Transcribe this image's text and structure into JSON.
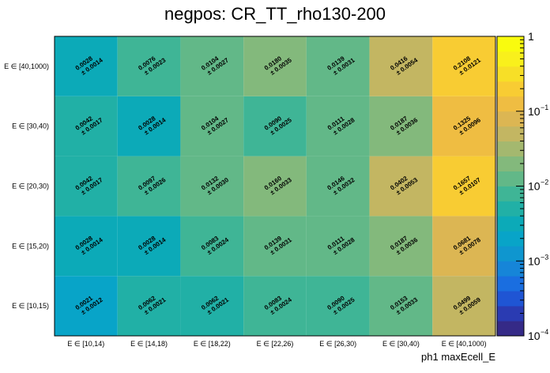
{
  "chart_data": {
    "type": "heatmap",
    "title": "negpos: CR_TT_rho130-200",
    "xlabel": "ph1 maxEcell_E",
    "ylabel": "",
    "x_categories": [
      "E ∈ [10,14)",
      "E ∈ [14,18)",
      "E ∈ [18,22)",
      "E ∈ [22,26)",
      "E ∈ [26,30)",
      "E ∈ [30,40)",
      "E ∈ [40,1000)"
    ],
    "y_categories": [
      "E ∈ [10,15)",
      "E ∈ [15,20)",
      "E ∈ [20,30)",
      "E ∈ [30,40)",
      "E ∈ [40,1000)"
    ],
    "values": [
      [
        "0.0021",
        "0.0062",
        "0.0062",
        "0.0083",
        "0.0090",
        "0.0153",
        "0.0499"
      ],
      [
        "0.0028",
        "0.0028",
        "0.0083",
        "0.0139",
        "0.0111",
        "0.0187",
        "0.0681"
      ],
      [
        "0.0042",
        "0.0097",
        "0.0132",
        "0.0160",
        "0.0146",
        "0.0402",
        "0.1657"
      ],
      [
        "0.0042",
        "0.0028",
        "0.0104",
        "0.0090",
        "0.0111",
        "0.0187",
        "0.1325"
      ],
      [
        "0.0028",
        "0.0076",
        "0.0104",
        "0.0180",
        "0.0139",
        "0.0416",
        "0.2108"
      ]
    ],
    "errors": [
      [
        "± 0.0012",
        "± 0.0021",
        "± 0.0021",
        "± 0.0024",
        "± 0.0025",
        "± 0.0033",
        "± 0.0059"
      ],
      [
        "± 0.0014",
        "± 0.0014",
        "± 0.0024",
        "± 0.0031",
        "± 0.0028",
        "± 0.0036",
        "± 0.0078"
      ],
      [
        "± 0.0017",
        "± 0.0026",
        "± 0.0030",
        "± 0.0033",
        "± 0.0032",
        "± 0.0053",
        "± 0.0107"
      ],
      [
        "± 0.0017",
        "± 0.0014",
        "± 0.0027",
        "± 0.0025",
        "± 0.0028",
        "± 0.0036",
        "± 0.0096"
      ],
      [
        "± 0.0014",
        "± 0.0023",
        "± 0.0027",
        "± 0.0035",
        "± 0.0031",
        "± 0.0054",
        "± 0.0121"
      ]
    ],
    "z_scale": "log",
    "z_range": [
      0.0001,
      1
    ],
    "colorbar_ticks": [
      {
        "base": "1",
        "exp": ""
      },
      {
        "base": "10",
        "exp": "−1"
      },
      {
        "base": "10",
        "exp": "−2"
      },
      {
        "base": "10",
        "exp": "−3"
      },
      {
        "base": "10",
        "exp": "−4"
      }
    ],
    "colorbar_values": [
      1,
      0.1,
      0.01,
      0.001,
      0.0001
    ],
    "palette": [
      "#352a87",
      "#2a3bb2",
      "#1f55d4",
      "#1a6ee0",
      "#1685d8",
      "#0f96cf",
      "#08a4c8",
      "#0caab8",
      "#21b0a6",
      "#3fb596",
      "#62b888",
      "#83b97c",
      "#a4b86f",
      "#c3b662",
      "#dcb653",
      "#efbd42",
      "#f8cc33",
      "#f7df27",
      "#f9f01c",
      "#f9fb0e"
    ]
  }
}
